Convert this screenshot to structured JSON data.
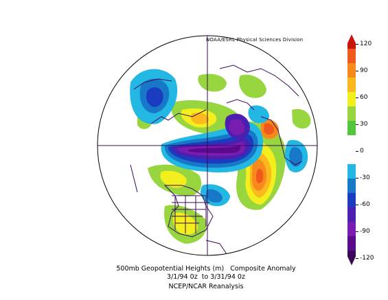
{
  "attribution": "NOAA/ESRL Physical Sciences Division",
  "caption": {
    "line1": "500mb Geopotential Heights (m)   Composite Anomaly",
    "line2": "3/1/94 0z  to 3/31/94 0z",
    "line3": "NCEP/NCAR Reanalysis"
  },
  "colorbar": {
    "labels": [
      "120",
      "90",
      "60",
      "30",
      "0",
      "-30",
      "-60",
      "-90",
      "-120"
    ],
    "colors": [
      "#c8160d",
      "#f0581e",
      "#f88a1c",
      "#fbb91d",
      "#f3ee1e",
      "#98d63f",
      "#55c53e",
      "#ffffff",
      "#ffffff",
      "#23b7e4",
      "#1778c8",
      "#1b3cc0",
      "#4b1fb0",
      "#7a1cb0",
      "#5a0a8c",
      "#3a0858"
    ]
  },
  "map": {
    "projection": "polar stereographic, northern hemisphere",
    "field": "500mb geopotential height anomaly",
    "units": "m"
  }
}
